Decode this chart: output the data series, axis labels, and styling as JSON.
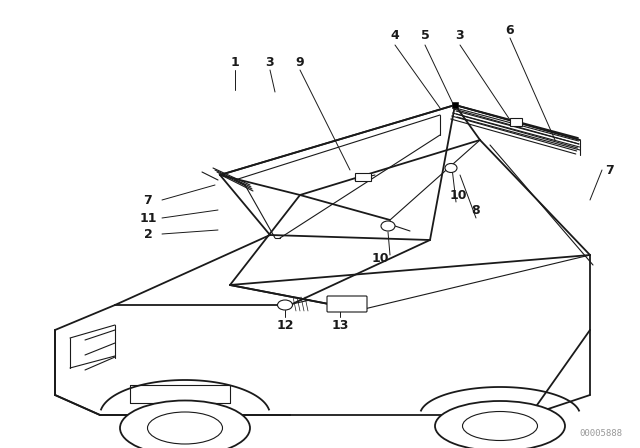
{
  "background_color": "#ffffff",
  "line_color": "#1a1a1a",
  "figure_width": 6.4,
  "figure_height": 4.48,
  "dpi": 100,
  "watermark_text": "00005888",
  "watermark_fontsize": 6.5
}
